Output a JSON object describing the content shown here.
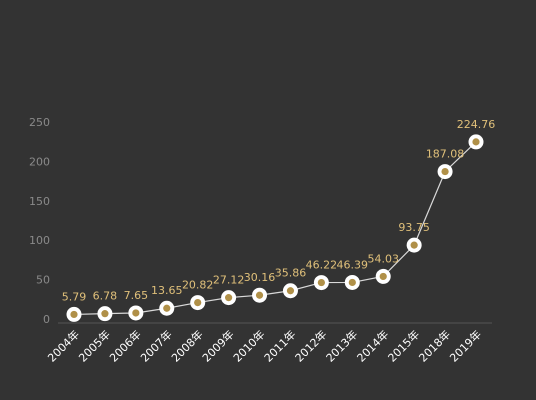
{
  "chart_data": {
    "type": "line",
    "categories": [
      "2004年",
      "2005年",
      "2006年",
      "2007年",
      "2008年",
      "2009年",
      "2010年",
      "2011年",
      "2012年",
      "2013年",
      "2014年",
      "2015年",
      "2018年",
      "2019年"
    ],
    "values": [
      5.79,
      6.78,
      7.65,
      13.65,
      20.82,
      27.12,
      30.16,
      35.86,
      46.22,
      46.39,
      54.03,
      93.75,
      187.08,
      224.76
    ],
    "value_labels": [
      "5.79",
      "6.78",
      "7.65",
      "13.65",
      "20.82",
      "27.12",
      "30.16",
      "35.86",
      "46.22",
      "46.39",
      "54.03",
      "93.75",
      "187.08",
      "224.76"
    ],
    "yticks": [
      "0",
      "50",
      "100",
      "150",
      "200",
      "250"
    ],
    "ylim": [
      0,
      250
    ],
    "grid": false,
    "colors": {
      "background": "#333333",
      "line": "#d9d9d9",
      "marker_fill": "#ffffff",
      "marker_dot": "#b09048",
      "data_label": "#e0c07a",
      "axis": "#555555",
      "tick_label": "#8a8a8a",
      "x_label": "#ffffff"
    }
  }
}
